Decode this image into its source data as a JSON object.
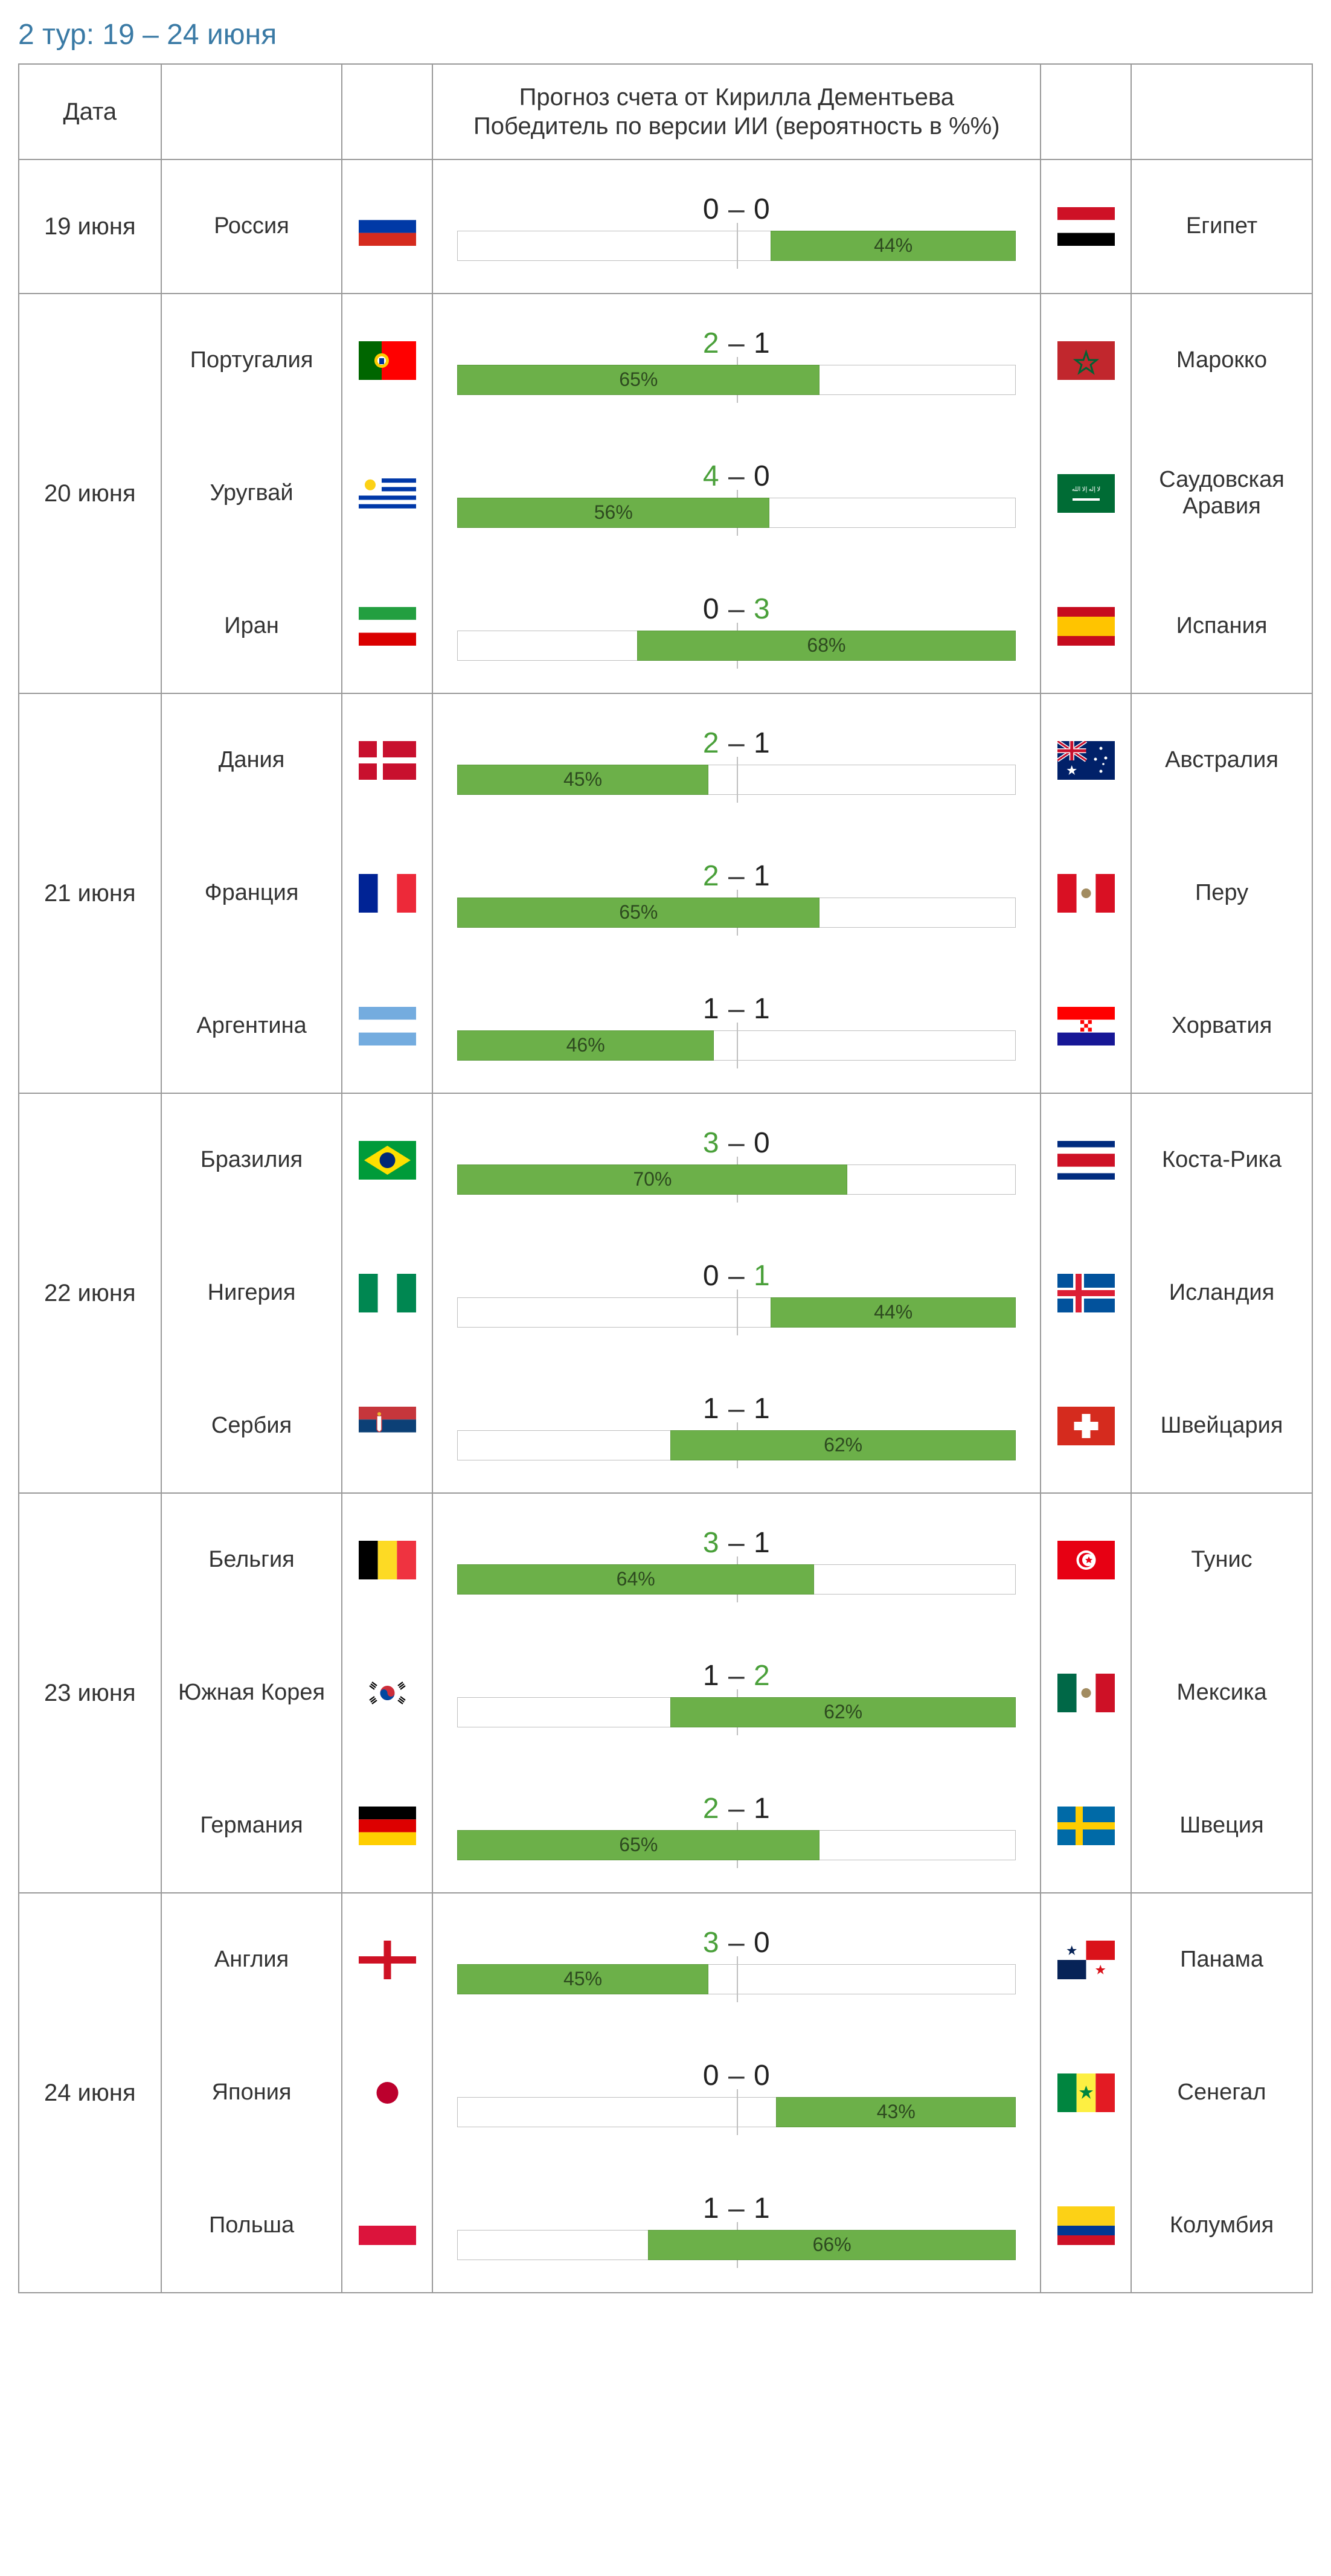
{
  "title": "2 тур: 19 – 24 июня",
  "header": {
    "date": "Дата",
    "center_line1": "Прогноз счета от Кирилла Дементьева",
    "center_line2": "Победитель по версии ИИ (вероятность в %%)"
  },
  "colors": {
    "title": "#3a7aa5",
    "border": "#999999",
    "bar_fill": "#6cb049",
    "bar_border": "#5b9a3c",
    "track_border": "#bfbfbf",
    "win_text": "#4aa03a"
  },
  "days": [
    {
      "date": "19 июня",
      "matches": [
        {
          "home": "Россия",
          "home_flag": "ru",
          "away": "Египет",
          "away_flag": "eg",
          "score_home": "0",
          "score_away": "0",
          "winner": "draw",
          "bar_side": "right",
          "pct": 44
        }
      ]
    },
    {
      "date": "20 июня",
      "matches": [
        {
          "home": "Португалия",
          "home_flag": "pt",
          "away": "Марокко",
          "away_flag": "ma",
          "score_home": "2",
          "score_away": "1",
          "winner": "home",
          "bar_side": "left",
          "pct": 65
        },
        {
          "home": "Уругвай",
          "home_flag": "uy",
          "away": "Саудовская Аравия",
          "away_flag": "sa",
          "score_home": "4",
          "score_away": "0",
          "winner": "home",
          "bar_side": "left",
          "pct": 56
        },
        {
          "home": "Иран",
          "home_flag": "ir",
          "away": "Испания",
          "away_flag": "es",
          "score_home": "0",
          "score_away": "3",
          "winner": "away",
          "bar_side": "right",
          "pct": 68
        }
      ]
    },
    {
      "date": "21 июня",
      "matches": [
        {
          "home": "Дания",
          "home_flag": "dk",
          "away": "Австралия",
          "away_flag": "au",
          "score_home": "2",
          "score_away": "1",
          "winner": "home",
          "bar_side": "left",
          "pct": 45
        },
        {
          "home": "Франция",
          "home_flag": "fr",
          "away": "Перу",
          "away_flag": "pe",
          "score_home": "2",
          "score_away": "1",
          "winner": "home",
          "bar_side": "left",
          "pct": 65
        },
        {
          "home": "Аргентина",
          "home_flag": "ar",
          "away": "Хорватия",
          "away_flag": "hr",
          "score_home": "1",
          "score_away": "1",
          "winner": "draw",
          "bar_side": "left",
          "pct": 46
        }
      ]
    },
    {
      "date": "22 июня",
      "matches": [
        {
          "home": "Бразилия",
          "home_flag": "br",
          "away": "Коста-Рика",
          "away_flag": "cr",
          "score_home": "3",
          "score_away": "0",
          "winner": "home",
          "bar_side": "left",
          "pct": 70
        },
        {
          "home": "Нигерия",
          "home_flag": "ng",
          "away": "Исландия",
          "away_flag": "is",
          "score_home": "0",
          "score_away": "1",
          "winner": "away",
          "bar_side": "right",
          "pct": 44
        },
        {
          "home": "Сербия",
          "home_flag": "rs",
          "away": "Швейцария",
          "away_flag": "ch",
          "score_home": "1",
          "score_away": "1",
          "winner": "draw",
          "bar_side": "right",
          "pct": 62
        }
      ]
    },
    {
      "date": "23 июня",
      "matches": [
        {
          "home": "Бельгия",
          "home_flag": "be",
          "away": "Тунис",
          "away_flag": "tn",
          "score_home": "3",
          "score_away": "1",
          "winner": "home",
          "bar_side": "left",
          "pct": 64
        },
        {
          "home": "Южная Корея",
          "home_flag": "kr",
          "away": "Мексика",
          "away_flag": "mx",
          "score_home": "1",
          "score_away": "2",
          "winner": "away",
          "bar_side": "right",
          "pct": 62
        },
        {
          "home": "Германия",
          "home_flag": "de",
          "away": "Швеция",
          "away_flag": "se",
          "score_home": "2",
          "score_away": "1",
          "winner": "home",
          "bar_side": "left",
          "pct": 65
        }
      ]
    },
    {
      "date": "24 июня",
      "matches": [
        {
          "home": "Англия",
          "home_flag": "en",
          "away": "Панама",
          "away_flag": "pa",
          "score_home": "3",
          "score_away": "0",
          "winner": "home",
          "bar_side": "left",
          "pct": 45
        },
        {
          "home": "Япония",
          "home_flag": "jp",
          "away": "Сенегал",
          "away_flag": "sn",
          "score_home": "0",
          "score_away": "0",
          "winner": "draw",
          "bar_side": "right",
          "pct": 43
        },
        {
          "home": "Польша",
          "home_flag": "pl",
          "away": "Колумбия",
          "away_flag": "co",
          "score_home": "1",
          "score_away": "1",
          "winner": "draw",
          "bar_side": "right",
          "pct": 66
        }
      ]
    }
  ],
  "flags": {
    "ru": [
      [
        "#ffffff",
        0,
        21.3
      ],
      [
        "#0039a6",
        21.3,
        21.3
      ],
      [
        "#d52b1e",
        42.6,
        21.4
      ]
    ],
    "eg": [
      [
        "#ce1126",
        0,
        21.3
      ],
      [
        "#ffffff",
        21.3,
        21.3
      ],
      [
        "#000000",
        42.6,
        21.4
      ]
    ],
    "pt": {
      "type": "pt"
    },
    "ma": {
      "type": "ma"
    },
    "uy": {
      "type": "uy"
    },
    "sa": {
      "type": "sa"
    },
    "ir": [
      [
        "#239f40",
        0,
        21.3
      ],
      [
        "#ffffff",
        21.3,
        21.3
      ],
      [
        "#da0000",
        42.6,
        21.4
      ]
    ],
    "es": [
      [
        "#c60b1e",
        0,
        16
      ],
      [
        "#ffc400",
        16,
        32
      ],
      [
        "#c60b1e",
        48,
        16
      ]
    ],
    "dk": {
      "type": "dk"
    },
    "au": {
      "type": "au"
    },
    "fr": {
      "type": "v3",
      "c": [
        "#002395",
        "#ffffff",
        "#ed2939"
      ]
    },
    "pe": {
      "type": "v3",
      "c": [
        "#d91023",
        "#ffffff",
        "#d91023"
      ],
      "emblem": true
    },
    "ar": [
      [
        "#74acdf",
        0,
        21.3
      ],
      [
        "#ffffff",
        21.3,
        21.3
      ],
      [
        "#74acdf",
        42.6,
        21.4
      ]
    ],
    "hr": {
      "type": "hr"
    },
    "br": {
      "type": "br"
    },
    "cr": [
      [
        "#002b7f",
        0,
        10.6
      ],
      [
        "#ffffff",
        10.6,
        10.6
      ],
      [
        "#ce1126",
        21.2,
        21.6
      ],
      [
        "#ffffff",
        42.8,
        10.6
      ],
      [
        "#002b7f",
        53.4,
        10.6
      ]
    ],
    "ng": {
      "type": "v3",
      "c": [
        "#008751",
        "#ffffff",
        "#008751"
      ]
    },
    "is": {
      "type": "is"
    },
    "rs": {
      "type": "rs"
    },
    "ch": {
      "type": "ch"
    },
    "be": {
      "type": "v3",
      "c": [
        "#000000",
        "#fdda24",
        "#ef3340"
      ]
    },
    "tn": {
      "type": "tn"
    },
    "kr": {
      "type": "kr"
    },
    "mx": {
      "type": "v3",
      "c": [
        "#006847",
        "#ffffff",
        "#ce1126"
      ],
      "emblem": true
    },
    "de": [
      [
        "#000000",
        0,
        21.3
      ],
      [
        "#dd0000",
        21.3,
        21.3
      ],
      [
        "#ffce00",
        42.6,
        21.4
      ]
    ],
    "se": {
      "type": "se"
    },
    "en": {
      "type": "en"
    },
    "pa": {
      "type": "pa"
    },
    "jp": {
      "type": "jp"
    },
    "sn": {
      "type": "sn"
    },
    "pl": [
      [
        "#ffffff",
        0,
        32
      ],
      [
        "#dc143c",
        32,
        32
      ]
    ],
    "co": [
      [
        "#fcd116",
        0,
        32
      ],
      [
        "#003893",
        32,
        16
      ],
      [
        "#ce1126",
        48,
        16
      ]
    ]
  }
}
